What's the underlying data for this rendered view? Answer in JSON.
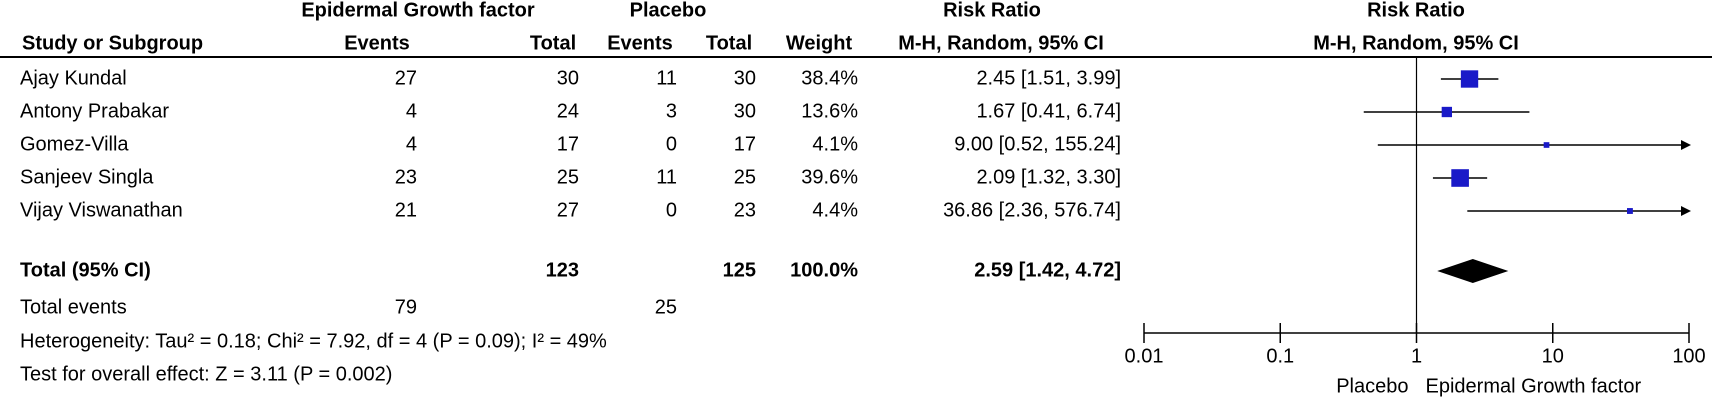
{
  "chart_data": {
    "type": "forest",
    "headers": {
      "group1": "Epidermal Growth factor",
      "group2": "Placebo",
      "effect_table": "Risk Ratio",
      "effect_plot": "Risk Ratio",
      "study": "Study or Subgroup",
      "events1": "Events",
      "total1": "Total",
      "events2": "Events",
      "total2": "Total",
      "weight": "Weight",
      "method_table": "M-H, Random, 95% CI",
      "method_plot": "M-H, Random, 95% CI"
    },
    "studies": [
      {
        "name": "Ajay Kundal",
        "events1": 27,
        "total1": 30,
        "events2": 11,
        "total2": 30,
        "weight": 38.4,
        "weight_label": "38.4%",
        "rr": 2.45,
        "lower": 1.51,
        "upper": 3.99,
        "ci_label": "2.45 [1.51, 3.99]"
      },
      {
        "name": "Antony Prabakar",
        "events1": 4,
        "total1": 24,
        "events2": 3,
        "total2": 30,
        "weight": 13.6,
        "weight_label": "13.6%",
        "rr": 1.67,
        "lower": 0.41,
        "upper": 6.74,
        "ci_label": "1.67 [0.41, 6.74]"
      },
      {
        "name": "Gomez-Villa",
        "events1": 4,
        "total1": 17,
        "events2": 0,
        "total2": 17,
        "weight": 4.1,
        "weight_label": "4.1%",
        "rr": 9.0,
        "lower": 0.52,
        "upper": 155.24,
        "ci_label": "9.00 [0.52, 155.24]"
      },
      {
        "name": "Sanjeev Singla",
        "events1": 23,
        "total1": 25,
        "events2": 11,
        "total2": 25,
        "weight": 39.6,
        "weight_label": "39.6%",
        "rr": 2.09,
        "lower": 1.32,
        "upper": 3.3,
        "ci_label": "2.09 [1.32, 3.30]"
      },
      {
        "name": "Vijay Viswanathan",
        "events1": 21,
        "total1": 27,
        "events2": 0,
        "total2": 23,
        "weight": 4.4,
        "weight_label": "4.4%",
        "rr": 36.86,
        "lower": 2.36,
        "upper": 576.74,
        "ci_label": "36.86 [2.36, 576.74]"
      }
    ],
    "total": {
      "name": "Total (95% CI)",
      "total1": 123,
      "total2": 125,
      "weight": 100.0,
      "weight_label": "100.0%",
      "rr": 2.59,
      "lower": 1.42,
      "upper": 4.72,
      "ci_label": "2.59 [1.42, 4.72]"
    },
    "total_events": {
      "name": "Total events",
      "events1": 79,
      "events2": 25
    },
    "heterogeneity": "Heterogeneity: Tau² = 0.18; Chi² = 7.92, df = 4 (P = 0.09); I² = 49%",
    "overall_effect": "Test for overall effect: Z = 3.11 (P = 0.002)",
    "log_scale": true,
    "xlim": [
      0.01,
      100
    ],
    "xticks": [
      0.01,
      0.1,
      1,
      10,
      100
    ],
    "reference": 1,
    "favours_left": "Placebo",
    "favours_right": "Epidermal Growth factor",
    "color": "#1a1ac8",
    "total_color": "#000000"
  }
}
